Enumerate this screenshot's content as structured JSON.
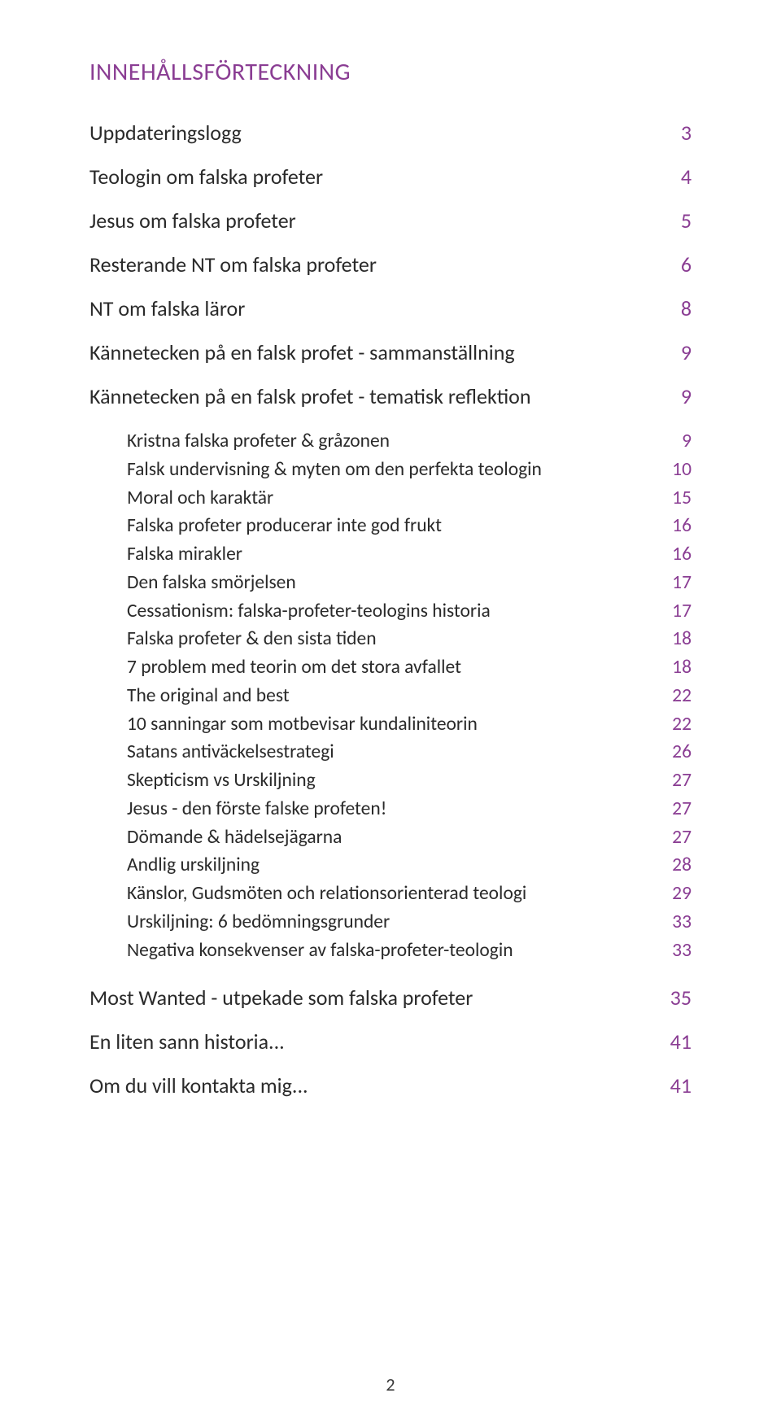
{
  "colors": {
    "title": "#8a3d93",
    "accent": "#8a3d93",
    "text": "#2a2a2a",
    "background": "#ffffff"
  },
  "title": "INNEHÅLLSFÖRTECKNING",
  "sections": [
    {
      "label": "Uppdateringslogg",
      "page": "3"
    },
    {
      "label": "Teologin om falska profeter",
      "page": "4"
    },
    {
      "label": "Jesus om falska profeter",
      "page": "5"
    },
    {
      "label": "Resterande NT om falska profeter",
      "page": "6"
    },
    {
      "label": "NT om falska läror",
      "page": "8"
    },
    {
      "label": "Kännetecken på en falsk profet - sammanställning",
      "page": "9"
    },
    {
      "label": "Kännetecken på en falsk profet - tematisk reflektion",
      "page": "9"
    }
  ],
  "subsections": [
    {
      "label": "Kristna falska profeter & gråzonen",
      "page": "9"
    },
    {
      "label": "Falsk undervisning & myten om den perfekta teologin",
      "page": "10"
    },
    {
      "label": "Moral och karaktär",
      "page": "15"
    },
    {
      "label": "Falska profeter producerar inte god frukt",
      "page": "16"
    },
    {
      "label": "Falska mirakler",
      "page": "16"
    },
    {
      "label": "Den falska smörjelsen",
      "page": "17"
    },
    {
      "label": "Cessationism: falska-profeter-teologins historia",
      "page": "17"
    },
    {
      "label": "Falska profeter & den sista tiden",
      "page": "18"
    },
    {
      "label": "7 problem med teorin om det stora avfallet",
      "page": "18"
    },
    {
      "label": "The original and best",
      "page": "22"
    },
    {
      "label": "10 sanningar som motbevisar kundaliniteorin",
      "page": "22"
    },
    {
      "label": "Satans antiväckelsestrategi",
      "page": "26"
    },
    {
      "label": "Skepticism vs Urskiljning",
      "page": "27"
    },
    {
      "label": "Jesus - den förste falske profeten!",
      "page": "27"
    },
    {
      "label": "Dömande & hädelsejägarna",
      "page": "27"
    },
    {
      "label": "Andlig urskiljning",
      "page": "28"
    },
    {
      "label": "Känslor, Gudsmöten och relationsorienterad teologi",
      "page": "29"
    },
    {
      "label": "Urskiljning: 6 bedömningsgrunder",
      "page": "33"
    },
    {
      "label": "Negativa konsekvenser av falska-profeter-teologin",
      "page": "33"
    }
  ],
  "sections_after": [
    {
      "label": "Most Wanted - utpekade som falska profeter",
      "page": "35"
    },
    {
      "label": "En liten sann historia...",
      "page": "41"
    },
    {
      "label": "Om du vill kontakta mig...",
      "page": "41"
    }
  ],
  "footer_page": "2"
}
